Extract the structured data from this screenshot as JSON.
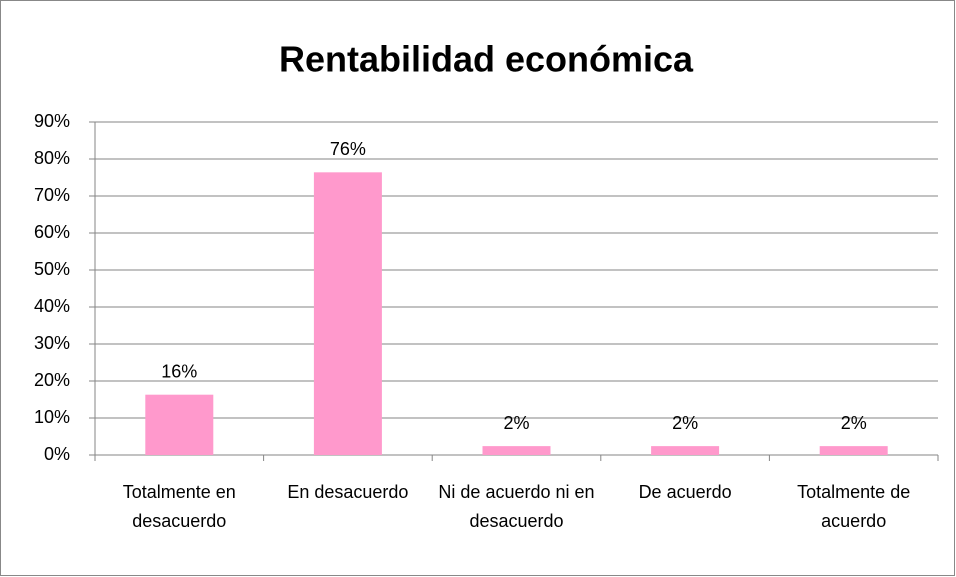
{
  "chart_data": {
    "type": "bar",
    "title": "Rentabilidad económica",
    "categories": [
      "Totalmente en desacuerdo",
      "En desacuerdo",
      "Ni de acuerdo ni en desacuerdo",
      "De acuerdo",
      "Totalmente de acuerdo"
    ],
    "values": [
      16.3,
      76.4,
      2.4,
      2.4,
      2.4
    ],
    "value_labels": [
      "16%",
      "76%",
      "2%",
      "2%",
      "2%"
    ],
    "color": "#ff99cc",
    "ylim": [
      0,
      90
    ],
    "yticks": [
      {
        "value": 0,
        "label": "0%"
      },
      {
        "value": 10,
        "label": "10%"
      },
      {
        "value": 20,
        "label": "20%"
      },
      {
        "value": 30,
        "label": "30%"
      },
      {
        "value": 40,
        "label": "40%"
      },
      {
        "value": 50,
        "label": "50%"
      },
      {
        "value": 60,
        "label": "60%"
      },
      {
        "value": 70,
        "label": "70%"
      },
      {
        "value": 80,
        "label": "80%"
      },
      {
        "value": 90,
        "label": "90%"
      }
    ],
    "grid": true
  }
}
